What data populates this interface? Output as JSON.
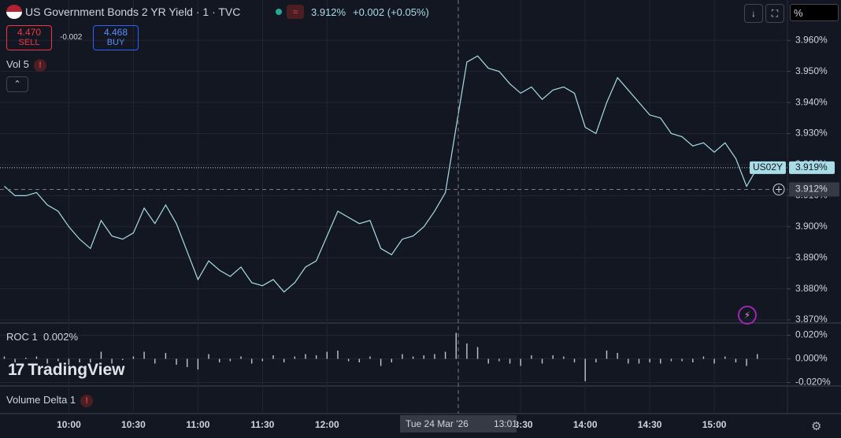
{
  "header": {
    "title": "US Government Bonds 2 YR Yield · 1 · TVC",
    "price": "3.912%",
    "change": "+0.002 (+0.05%)",
    "sell_price": "4.470",
    "sell_label": "SELL",
    "spread": "-0.002",
    "buy_price": "4.468",
    "buy_label": "BUY",
    "volume": "Vol 5",
    "roc": "ROC 1",
    "roc_value": "0.002%",
    "volume_delta": "Volume Delta 1",
    "logo": "TradingView",
    "scale_mode": "%"
  },
  "chart_data": [
    {
      "type": "line",
      "x": [
        "09:30",
        "09:35",
        "09:40",
        "09:45",
        "09:50",
        "09:55",
        "10:00",
        "10:05",
        "10:10",
        "10:15",
        "10:20",
        "10:25",
        "10:30",
        "10:35",
        "10:40",
        "10:45",
        "10:50",
        "10:55",
        "11:00",
        "11:05",
        "11:10",
        "11:15",
        "11:20",
        "11:25",
        "11:30",
        "11:35",
        "11:40",
        "11:45",
        "11:50",
        "11:55",
        "12:00",
        "12:05",
        "12:10",
        "12:15",
        "12:20",
        "12:25",
        "12:30",
        "12:35",
        "12:40",
        "12:45",
        "12:50",
        "12:55",
        "13:00",
        "13:05",
        "13:10",
        "13:15",
        "13:20",
        "13:25",
        "13:30",
        "13:35",
        "13:40",
        "13:45",
        "13:50",
        "13:55",
        "14:00",
        "14:05",
        "14:10",
        "14:15",
        "14:20",
        "14:25",
        "14:30",
        "14:35",
        "14:40",
        "14:45",
        "14:50",
        "14:55",
        "15:00",
        "15:05",
        "15:10",
        "15:15",
        "15:20"
      ],
      "series": [
        {
          "name": "US02Y",
          "color": "#a8dce6",
          "values": [
            3.913,
            3.91,
            3.91,
            3.911,
            3.907,
            3.905,
            3.9,
            3.896,
            3.893,
            3.902,
            3.897,
            3.896,
            3.898,
            3.906,
            3.901,
            3.907,
            3.901,
            3.892,
            3.883,
            3.889,
            3.886,
            3.884,
            3.887,
            3.882,
            3.881,
            3.883,
            3.879,
            3.882,
            3.887,
            3.889,
            3.897,
            3.905,
            3.903,
            3.901,
            3.902,
            3.893,
            3.891,
            3.896,
            3.897,
            3.9,
            3.905,
            3.911,
            3.932,
            3.953,
            3.955,
            3.951,
            3.95,
            3.946,
            3.943,
            3.945,
            3.941,
            3.944,
            3.945,
            3.943,
            3.932,
            3.93,
            3.94,
            3.948,
            3.944,
            3.94,
            3.936,
            3.935,
            3.93,
            3.929,
            3.926,
            3.927,
            3.924,
            3.927,
            3.922,
            3.913,
            3.919
          ]
        }
      ],
      "last_value": {
        "value": 3.919,
        "label": "3.919%"
      },
      "crosshair": {
        "x": "13:01",
        "x_label": "Tue 24 Mar '26",
        "value": 3.912,
        "label": "3.912%"
      },
      "xlim": [
        "09:28",
        "15:34"
      ],
      "xticks": [
        "10:00",
        "10:30",
        "11:00",
        "11:30",
        "12:00",
        "13:30",
        "14:00",
        "14:30",
        "15:00"
      ],
      "ylim": [
        3.869,
        3.973
      ],
      "yticks": [
        {
          "value": 3.87,
          "label": "3.870%"
        },
        {
          "value": 3.88,
          "label": "3.880%"
        },
        {
          "value": 3.89,
          "label": "3.890%"
        },
        {
          "value": 3.9,
          "label": "3.900%"
        },
        {
          "value": 3.91,
          "label": "3.910%"
        },
        {
          "value": 3.92,
          "label": "3.920%"
        },
        {
          "value": 3.93,
          "label": "3.930%"
        },
        {
          "value": 3.94,
          "label": "3.940%"
        },
        {
          "value": 3.95,
          "label": "3.950%"
        },
        {
          "value": 3.96,
          "label": "3.960%"
        }
      ],
      "grid": true
    },
    {
      "type": "bar",
      "series": [
        {
          "name": "ROC 1",
          "color": "#c3c6ce",
          "values": [
            0.002,
            -0.003,
            0.001,
            0.002,
            -0.004,
            -0.002,
            -0.005,
            -0.003,
            -0.003,
            0.006,
            -0.004,
            -0.001,
            0.002,
            0.006,
            -0.004,
            0.005,
            -0.005,
            -0.007,
            -0.009,
            0.004,
            -0.003,
            -0.002,
            0.002,
            -0.004,
            -0.002,
            0.003,
            -0.003,
            0.002,
            0.004,
            0.003,
            0.006,
            0.007,
            -0.002,
            -0.003,
            0.002,
            -0.006,
            -0.003,
            0.004,
            0.002,
            0.003,
            0.004,
            0.006,
            0.022,
            0.013,
            0.01,
            -0.004,
            -0.002,
            -0.004,
            -0.006,
            0.003,
            -0.004,
            0.003,
            0.002,
            -0.003,
            -0.019,
            -0.003,
            0.007,
            0.005,
            -0.004,
            -0.004,
            -0.003,
            -0.004,
            -0.002,
            -0.002,
            -0.003,
            0.002,
            -0.004,
            0.002,
            -0.003,
            -0.006,
            0.004
          ]
        }
      ],
      "ylim": [
        -0.023,
        0.029
      ],
      "yticks": [
        {
          "value": 0.02,
          "label": "0.020%"
        },
        {
          "value": 0,
          "label": "0.000%"
        },
        {
          "value": -0.02,
          "label": "-0.020%"
        }
      ]
    }
  ]
}
